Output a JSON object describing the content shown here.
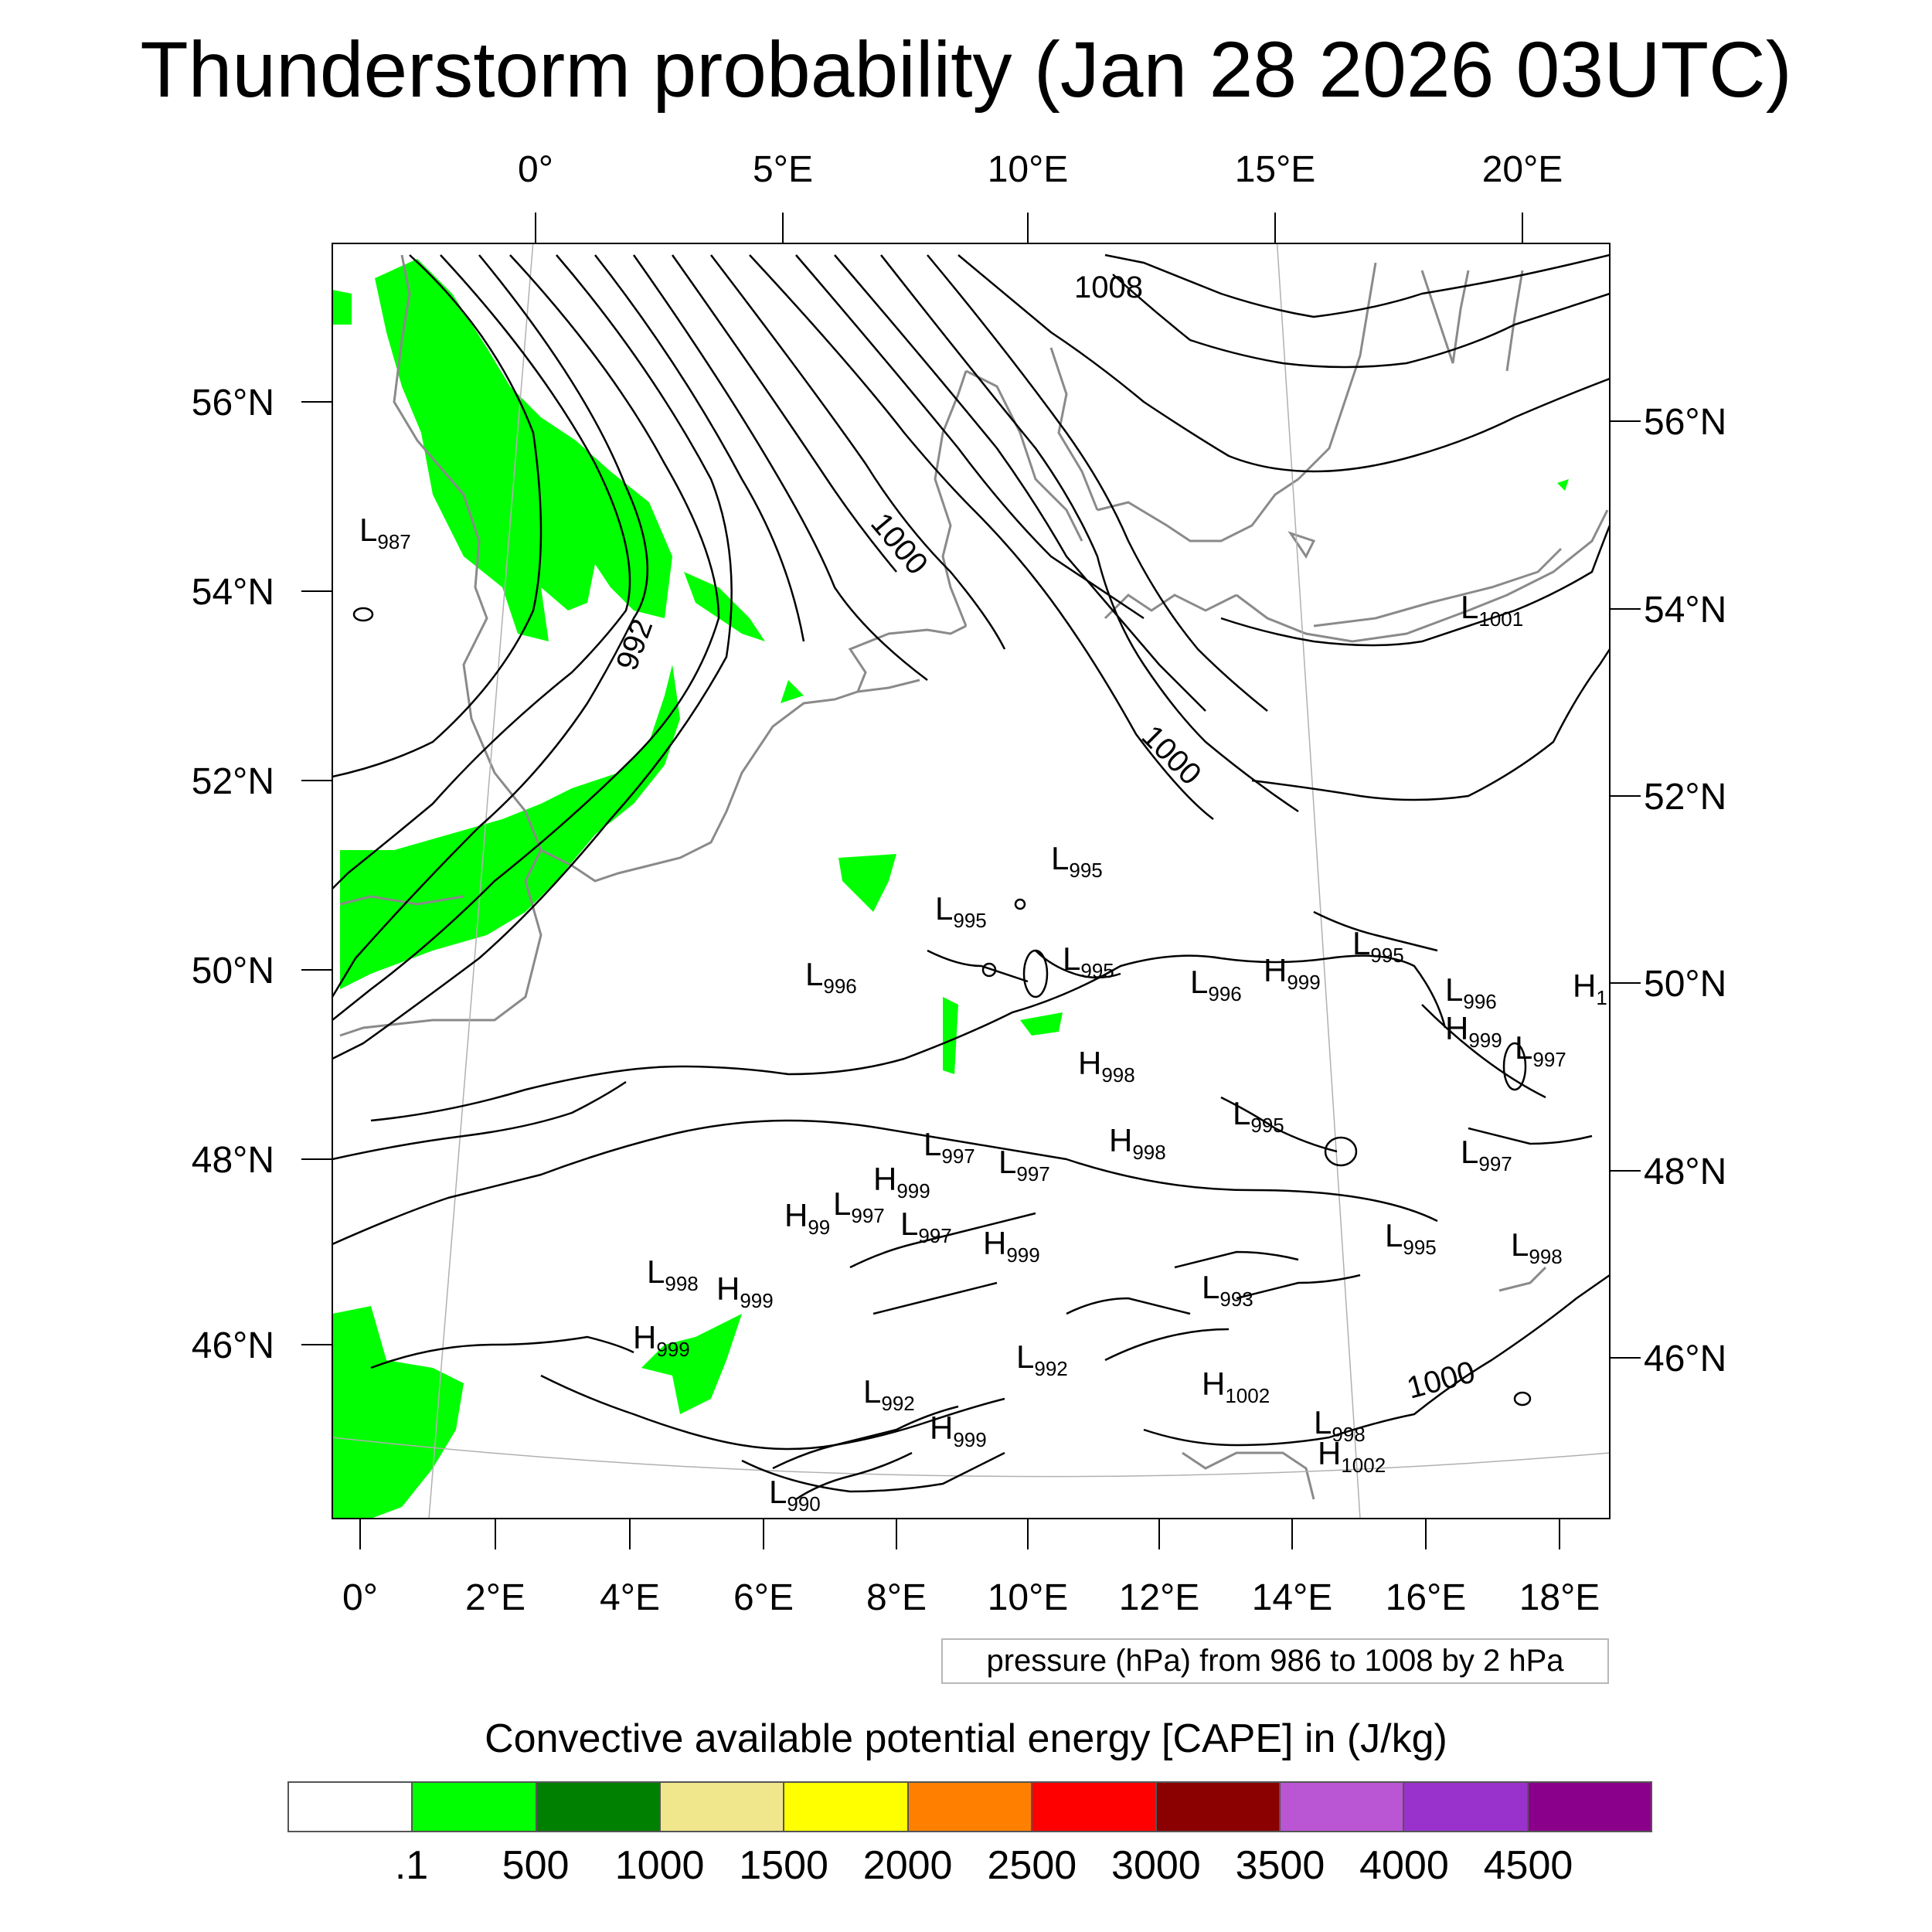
{
  "title": "Thunderstorm probability (Jan 28 2026 03UTC)",
  "map": {
    "top_lon_labels": [
      "0°",
      "5°E",
      "10°E",
      "15°E",
      "20°E"
    ],
    "bottom_lon_labels": [
      "0°",
      "2°E",
      "4°E",
      "6°E",
      "8°E",
      "10°E",
      "12°E",
      "14°E",
      "16°E",
      "18°E"
    ],
    "left_lat_labels": [
      "56°N",
      "54°N",
      "52°N",
      "50°N",
      "48°N",
      "46°N"
    ],
    "right_lat_labels": [
      "56°N",
      "54°N",
      "52°N",
      "50°N",
      "48°N",
      "46°N"
    ],
    "isobar_labels": [
      "1008",
      "1000",
      "992",
      "1000",
      "1000"
    ],
    "pressure_centers": [
      {
        "type": "L",
        "value": "987"
      },
      {
        "type": "L",
        "value": "1001"
      },
      {
        "type": "L",
        "value": "995"
      },
      {
        "type": "L",
        "value": "995"
      },
      {
        "type": "L",
        "value": "996"
      },
      {
        "type": "L",
        "value": "995"
      },
      {
        "type": "L",
        "value": "996"
      },
      {
        "type": "H",
        "value": "999"
      },
      {
        "type": "L",
        "value": "995"
      },
      {
        "type": "L",
        "value": "996"
      },
      {
        "type": "H",
        "value": "1"
      },
      {
        "type": "H",
        "value": "999"
      },
      {
        "type": "L",
        "value": "997"
      },
      {
        "type": "H",
        "value": "998"
      },
      {
        "type": "L",
        "value": "995"
      },
      {
        "type": "H",
        "value": "998"
      },
      {
        "type": "L",
        "value": "997"
      },
      {
        "type": "L",
        "value": "997"
      },
      {
        "type": "L",
        "value": "997"
      },
      {
        "type": "H",
        "value": "999"
      },
      {
        "type": "H",
        "value": "99"
      },
      {
        "type": "L",
        "value": "997"
      },
      {
        "type": "L",
        "value": "997"
      },
      {
        "type": "H",
        "value": "999"
      },
      {
        "type": "L",
        "value": "995"
      },
      {
        "type": "L",
        "value": "998"
      },
      {
        "type": "L",
        "value": "998"
      },
      {
        "type": "H",
        "value": "999"
      },
      {
        "type": "L",
        "value": "993"
      },
      {
        "type": "H",
        "value": "999"
      },
      {
        "type": "L",
        "value": "992"
      },
      {
        "type": "H",
        "value": "1002"
      },
      {
        "type": "L",
        "value": "992"
      },
      {
        "type": "H",
        "value": "999"
      },
      {
        "type": "L",
        "value": "998"
      },
      {
        "type": "H",
        "value": "1002"
      },
      {
        "type": "L",
        "value": "990"
      }
    ]
  },
  "pressure_note": "pressure (hPa) from 986 to 1008 by 2 hPa",
  "colorbar": {
    "title": "Convective available potential energy [CAPE] in (J/kg)",
    "colors": [
      "#ffffff",
      "#00ff00",
      "#008000",
      "#f0e68c",
      "#ffff00",
      "#ff8000",
      "#ff0000",
      "#8b0000",
      "#ba55d3",
      "#9932cc",
      "#8b008b"
    ],
    "tick_labels": [
      ".1",
      "500",
      "1000",
      "1500",
      "2000",
      "2500",
      "3000",
      "3500",
      "4000",
      "4500"
    ]
  }
}
